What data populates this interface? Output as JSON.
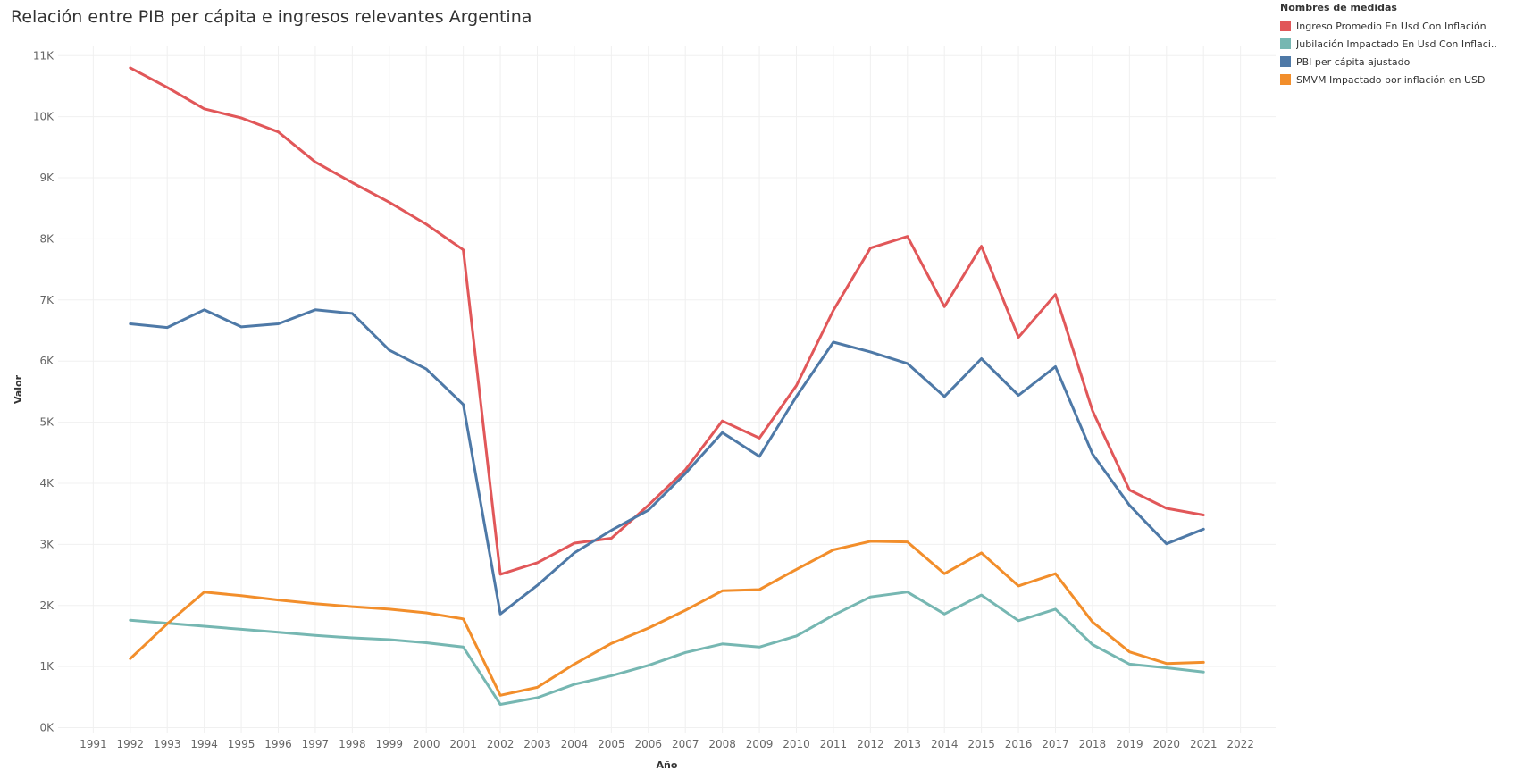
{
  "chart_data": {
    "type": "line",
    "title": "Relación entre PIB per cápita e ingresos relevantes Argentina",
    "xlabel": "Año",
    "ylabel": "Valor",
    "legend_title": "Nombres de medidas",
    "legend_position": "top-right",
    "grid": true,
    "xlim": [
      1991,
      2022
    ],
    "ylim": [
      0,
      11000
    ],
    "x_ticks": [
      1991,
      1992,
      1993,
      1994,
      1995,
      1996,
      1997,
      1998,
      1999,
      2000,
      2001,
      2002,
      2003,
      2004,
      2005,
      2006,
      2007,
      2008,
      2009,
      2010,
      2011,
      2012,
      2013,
      2014,
      2015,
      2016,
      2017,
      2018,
      2019,
      2020,
      2021,
      2022
    ],
    "y_ticks": [
      0,
      1000,
      2000,
      3000,
      4000,
      5000,
      6000,
      7000,
      8000,
      9000,
      10000,
      11000
    ],
    "y_tick_labels": [
      "0K",
      "1K",
      "2K",
      "3K",
      "4K",
      "5K",
      "6K",
      "7K",
      "8K",
      "9K",
      "10K",
      "11K"
    ],
    "x": [
      1992,
      1993,
      1994,
      1995,
      1996,
      1997,
      1998,
      1999,
      2000,
      2001,
      2002,
      2003,
      2004,
      2005,
      2006,
      2007,
      2008,
      2009,
      2010,
      2011,
      2012,
      2013,
      2014,
      2015,
      2016,
      2017,
      2018,
      2019,
      2020,
      2021
    ],
    "series": [
      {
        "name": "Ingreso Promedio En Usd Con Inflación",
        "legend_label": "Ingreso Promedio En Usd Con Inflación",
        "color": "#e15759",
        "values": [
          10800,
          10480,
          10130,
          9980,
          9750,
          9260,
          8920,
          8600,
          8240,
          7820,
          2510,
          2700,
          3020,
          3100,
          3640,
          4220,
          5020,
          4740,
          5600,
          6830,
          7850,
          8040,
          6890,
          7880,
          6390,
          7090,
          5190,
          3890,
          3590,
          3480
        ]
      },
      {
        "name": "Jubilación Impactado En Usd Con Inflación",
        "legend_label": "Jubilación Impactado En Usd Con Inflaci..",
        "color": "#76b7b2",
        "values": [
          1760,
          1710,
          1660,
          1610,
          1560,
          1510,
          1470,
          1440,
          1390,
          1320,
          380,
          490,
          710,
          850,
          1020,
          1230,
          1370,
          1320,
          1500,
          1840,
          2140,
          2220,
          1860,
          2170,
          1750,
          1940,
          1360,
          1040,
          980,
          910
        ]
      },
      {
        "name": "PBI per cápita ajustado",
        "legend_label": "PBI per cápita ajustado",
        "color": "#4e79a7",
        "values": [
          6610,
          6550,
          6840,
          6560,
          6610,
          6840,
          6780,
          6180,
          5870,
          5290,
          1860,
          2330,
          2860,
          3230,
          3560,
          4160,
          4830,
          4440,
          5420,
          6310,
          6150,
          5960,
          5420,
          6040,
          5440,
          5910,
          4480,
          3640,
          3010,
          3250
        ]
      },
      {
        "name": "SMVM Impactado por inflación en USD",
        "legend_label": "SMVM Impactado por inflación en USD",
        "color": "#f28e2b",
        "values": [
          1130,
          1700,
          2220,
          2160,
          2090,
          2030,
          1980,
          1940,
          1880,
          1780,
          530,
          660,
          1040,
          1380,
          1630,
          1920,
          2240,
          2260,
          2590,
          2910,
          3050,
          3040,
          2520,
          2860,
          2320,
          2520,
          1730,
          1240,
          1050,
          1070
        ]
      }
    ]
  }
}
